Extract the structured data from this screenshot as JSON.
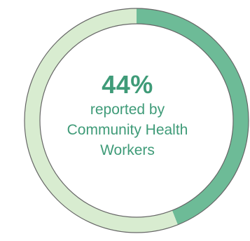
{
  "chart_data": {
    "type": "pie",
    "style": "donut",
    "values": [
      44,
      56
    ],
    "unit": "%",
    "colors": [
      "#6dbb97",
      "#d8ecd0"
    ],
    "outline_color": "#666666",
    "center_label": {
      "value": "44%",
      "lines": [
        "reported by",
        "Community Health",
        "Workers"
      ]
    }
  }
}
